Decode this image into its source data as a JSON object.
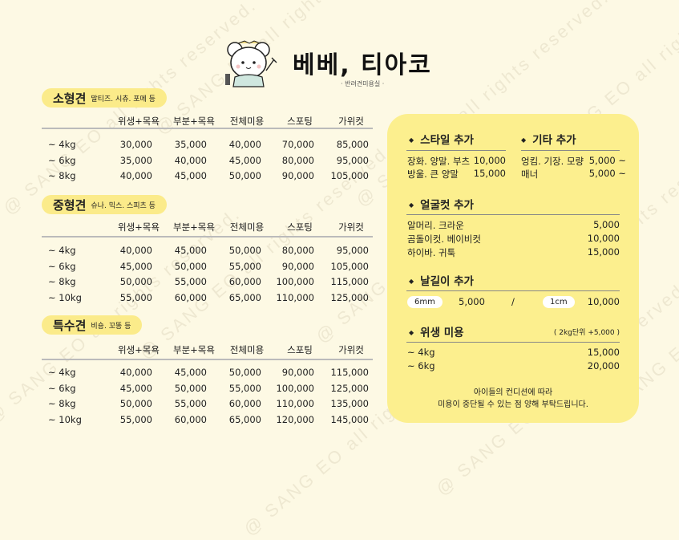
{
  "watermark": "@ SANG EO all rights reserved.",
  "header": {
    "title": "베베, 티아코",
    "subtitle": "· 반려견미용실 ·",
    "logo": "bear-with-scissors-logo"
  },
  "columns": [
    "위생+목욕",
    "부분+목욕",
    "전체미용",
    "스포팅",
    "가위컷"
  ],
  "sections": [
    {
      "name": "소형견",
      "desc": "말티즈. 시츄. 포메 등",
      "rows": [
        {
          "weight": "~ 4kg",
          "prices": [
            "30,000",
            "35,000",
            "40,000",
            "70,000",
            "85,000"
          ]
        },
        {
          "weight": "~ 6kg",
          "prices": [
            "35,000",
            "40,000",
            "45,000",
            "80,000",
            "95,000"
          ]
        },
        {
          "weight": "~ 8kg",
          "prices": [
            "40,000",
            "45,000",
            "50,000",
            "90,000",
            "105,000"
          ]
        }
      ]
    },
    {
      "name": "중형견",
      "desc": "슈나. 믹스. 스피츠 등",
      "rows": [
        {
          "weight": "~ 4kg",
          "prices": [
            "40,000",
            "45,000",
            "50,000",
            "80,000",
            "95,000"
          ]
        },
        {
          "weight": "~ 6kg",
          "prices": [
            "45,000",
            "50,000",
            "55,000",
            "90,000",
            "105,000"
          ]
        },
        {
          "weight": "~ 8kg",
          "prices": [
            "50,000",
            "55,000",
            "60,000",
            "100,000",
            "115,000"
          ]
        },
        {
          "weight": "~ 10kg",
          "prices": [
            "55,000",
            "60,000",
            "65,000",
            "110,000",
            "125,000"
          ]
        }
      ]
    },
    {
      "name": "특수견",
      "desc": "비숑. 꼬똥 등",
      "rows": [
        {
          "weight": "~ 4kg",
          "prices": [
            "40,000",
            "45,000",
            "50,000",
            "90,000",
            "115,000"
          ]
        },
        {
          "weight": "~ 6kg",
          "prices": [
            "45,000",
            "50,000",
            "55,000",
            "100,000",
            "125,000"
          ]
        },
        {
          "weight": "~ 8kg",
          "prices": [
            "50,000",
            "55,000",
            "60,000",
            "110,000",
            "135,000"
          ]
        },
        {
          "weight": "~ 10kg",
          "prices": [
            "55,000",
            "60,000",
            "65,000",
            "120,000",
            "145,000"
          ]
        }
      ]
    }
  ],
  "extras": {
    "style": {
      "title": "스타일 추가",
      "items": [
        {
          "label": "장화. 양말. 부츠",
          "price": "10,000"
        },
        {
          "label": "방울. 큰 양말",
          "price": "15,000"
        }
      ]
    },
    "other": {
      "title": "기타 추가",
      "items": [
        {
          "label": "엉킴. 기장. 모량",
          "price": "5,000 ~"
        },
        {
          "label": "매너",
          "price": "5,000 ~"
        }
      ]
    },
    "face": {
      "title": "얼굴컷 추가",
      "items": [
        {
          "label": "알머리. 크라운",
          "price": "5,000"
        },
        {
          "label": "곰돌이컷. 베이비컷",
          "price": "10,000"
        },
        {
          "label": "하이바. 귀툭",
          "price": "15,000"
        }
      ]
    },
    "blade": {
      "title": "날길이 추가",
      "a_label": "6mm",
      "a_price": "5,000",
      "sep": "/",
      "b_label": "1cm",
      "b_price": "10,000"
    },
    "hygiene": {
      "title": "위생 미용",
      "note": "( 2kg단위 +5,000 )",
      "items": [
        {
          "label": "~ 4kg",
          "price": "15,000"
        },
        {
          "label": "~ 6kg",
          "price": "20,000"
        }
      ]
    },
    "footer": [
      "아이들의 컨디션에 따라",
      "미용이 중단될 수 있는 점 양해 부탁드립니다."
    ]
  }
}
